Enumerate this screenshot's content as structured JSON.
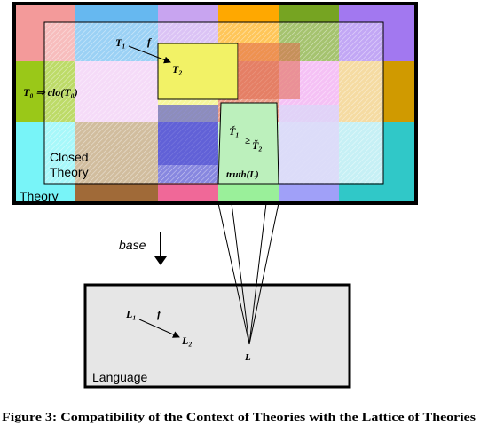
{
  "theory_box": {
    "label": "Theory",
    "closed_theory_label_line1": "Closed",
    "closed_theory_label_line2": "Theory",
    "fixpoint_formula": "T₀ ⇒ clo(T₀)",
    "morphism_source": "T₁",
    "morphism_label": "f",
    "morphism_target": "T₂",
    "order_left": "Ť₁",
    "order_symbol": "≥",
    "order_right": "Ť₂",
    "truth_label": "truth(L)"
  },
  "base_arrow": {
    "label": "base"
  },
  "language_box": {
    "label": "Language",
    "morphism_source": "L₁",
    "morphism_label": "f",
    "morphism_target": "L₂",
    "point_label": "L"
  },
  "caption": "Figure 3: Compatibility of the Context of Theories with the Lattice of Theories",
  "colors": {
    "outline": "#000000",
    "language_fill": "#e6e6e6",
    "closed_theory_fill": "#9ad49a",
    "subsection_fill": "#f0f060"
  }
}
